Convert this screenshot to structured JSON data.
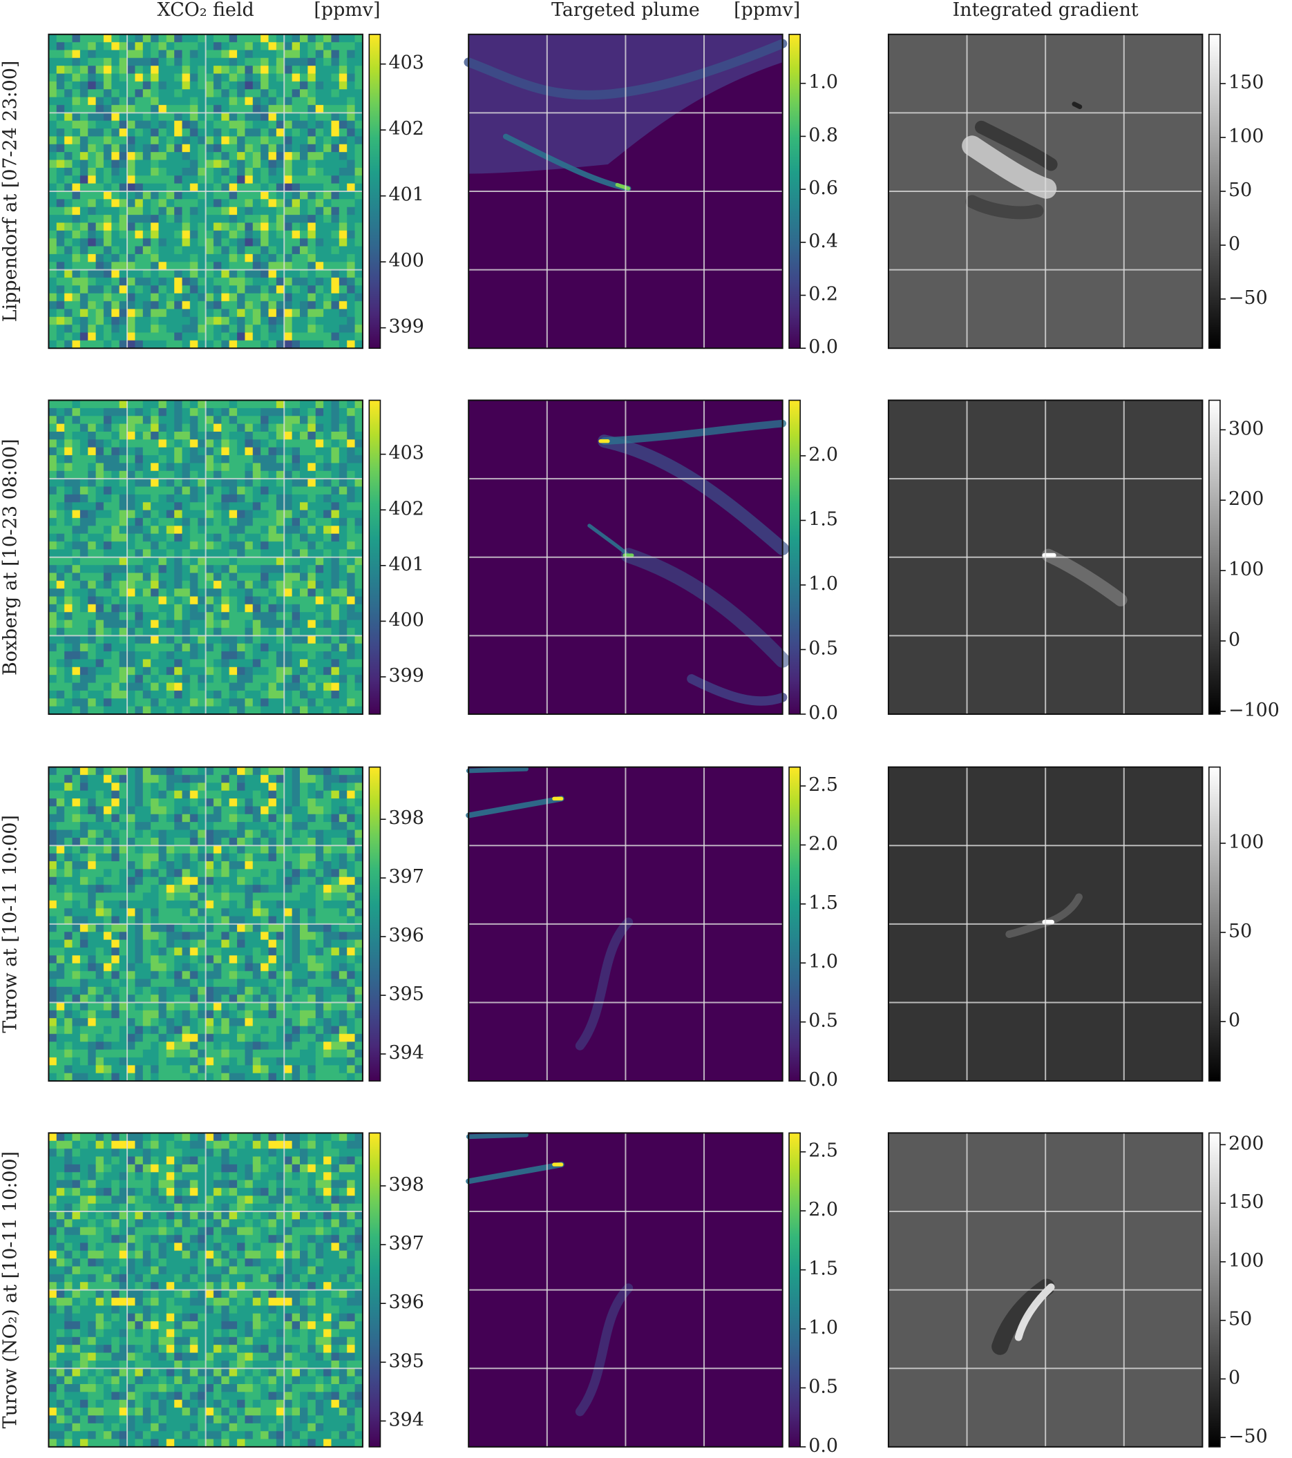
{
  "chart_data": [
    {
      "type": "heatmap",
      "cmap": "viridis",
      "title": "XCO₂ field",
      "units": "[ppmv]",
      "ylabel": "Lippendorf at [07-24 23:00]",
      "clim": [
        398.69,
        403.45
      ],
      "cticks": [
        399,
        400,
        401,
        402,
        403
      ]
    },
    {
      "type": "heatmap",
      "cmap": "viridis",
      "title": "Targeted plume",
      "units": "[ppmv]",
      "clim": [
        0,
        1.185
      ],
      "cticks": [
        {
          "value": 0,
          "label": "0.0"
        },
        0.2,
        0.4,
        0.6,
        0.8,
        {
          "value": 1,
          "label": "1.0"
        }
      ]
    },
    {
      "type": "heatmap",
      "cmap": "gray",
      "title": "Integrated gradient",
      "clim": [
        -95.7,
        195.7
      ],
      "cticks": [
        {
          "value": -50,
          "label": "−50"
        },
        0,
        50,
        100,
        150
      ]
    },
    {
      "type": "heatmap",
      "cmap": "viridis",
      "ylabel": "Boxberg at [10-23 08:00]",
      "clim": [
        398.33,
        403.97
      ],
      "cticks": [
        399,
        400,
        401,
        402,
        403
      ]
    },
    {
      "type": "heatmap",
      "cmap": "viridis",
      "clim": [
        0,
        2.43
      ],
      "cticks": [
        {
          "value": 0,
          "label": "0.0"
        },
        0.5,
        {
          "value": 1,
          "label": "1.0"
        },
        1.5,
        {
          "value": 2,
          "label": "2.0"
        }
      ]
    },
    {
      "type": "heatmap",
      "cmap": "gray",
      "clim": [
        -104,
        342
      ],
      "cticks": [
        {
          "value": -100,
          "label": "−100"
        },
        0,
        100,
        200,
        300
      ]
    },
    {
      "type": "heatmap",
      "cmap": "viridis",
      "ylabel": "Turow at [10-11 10:00]",
      "clim": [
        393.54,
        398.89
      ],
      "cticks": [
        394,
        395,
        396,
        397,
        398
      ]
    },
    {
      "type": "heatmap",
      "cmap": "viridis",
      "clim": [
        0,
        2.66
      ],
      "cticks": [
        {
          "value": 0,
          "label": "0.0"
        },
        0.5,
        {
          "value": 1,
          "label": "1.0"
        },
        1.5,
        {
          "value": 2,
          "label": "2.0"
        },
        2.5
      ]
    },
    {
      "type": "heatmap",
      "cmap": "gray",
      "clim": [
        -33.3,
        142.7
      ],
      "cticks": [
        0,
        50,
        100
      ]
    },
    {
      "type": "heatmap",
      "cmap": "viridis",
      "ylabel": "Turow (NO₂) at [10-11 10:00]",
      "clim": [
        393.56,
        398.9
      ],
      "cticks": [
        394,
        395,
        396,
        397,
        398
      ]
    },
    {
      "type": "heatmap",
      "cmap": "viridis",
      "clim": [
        0,
        2.66
      ],
      "cticks": [
        {
          "value": 0,
          "label": "0.0"
        },
        0.5,
        {
          "value": 1,
          "label": "1.0"
        },
        1.5,
        {
          "value": 2,
          "label": "2.0"
        },
        2.5
      ]
    },
    {
      "type": "heatmap",
      "cmap": "gray",
      "clim": [
        -58,
        210
      ],
      "cticks": [
        {
          "value": -50,
          "label": "−50"
        },
        0,
        50,
        100,
        150,
        200
      ]
    }
  ]
}
